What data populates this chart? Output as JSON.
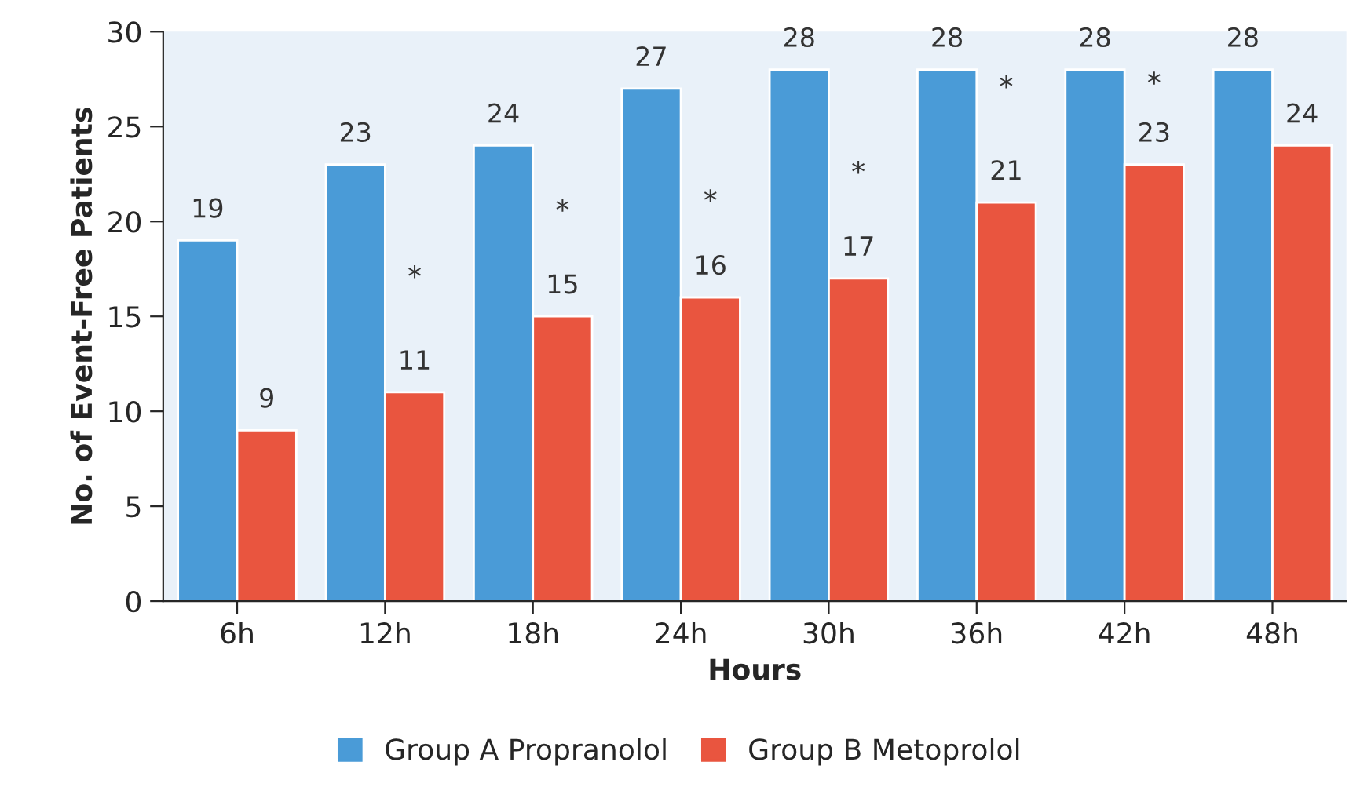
{
  "chart_data": {
    "type": "bar",
    "categories": [
      "6h",
      "12h",
      "18h",
      "24h",
      "30h",
      "36h",
      "42h",
      "48h"
    ],
    "series": [
      {
        "name": "Group A Propranolol",
        "color": "#4a9bd7",
        "values": [
          19,
          23,
          24,
          27,
          28,
          28,
          28,
          28
        ]
      },
      {
        "name": "Group B Metoprolol",
        "color": "#e9553f",
        "values": [
          9,
          11,
          15,
          16,
          17,
          21,
          23,
          24
        ]
      }
    ],
    "xlabel": "Hours",
    "ylabel": "No. of Event-Free Patients",
    "ylim": [
      0,
      30
    ],
    "yticks": [
      0,
      5,
      10,
      15,
      20,
      25,
      30
    ],
    "data_labels": true,
    "grid": false,
    "legend": "bottom",
    "annotations": [
      {
        "text": "*",
        "x": "12h",
        "y": 17
      },
      {
        "text": "*",
        "x": "18h",
        "y": 20.5
      },
      {
        "text": "*",
        "x": "24h",
        "y": 21
      },
      {
        "text": "*",
        "x": "30h",
        "y": 22.5
      },
      {
        "text": "*",
        "x": "36h",
        "y": 27
      },
      {
        "text": "*",
        "x": "42h",
        "y": 27.2
      }
    ]
  }
}
